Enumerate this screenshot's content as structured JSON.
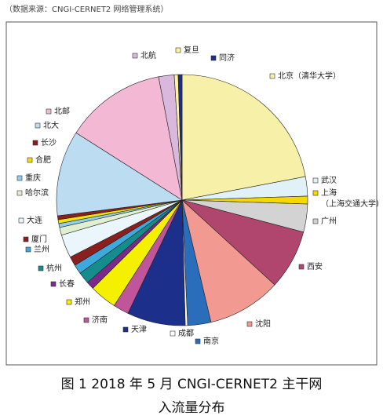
{
  "chart_data": {
    "type": "pie",
    "source": "（数据来源：CNGI-CERNET2 网络管理系统）",
    "title": "图 1  2018 年 5 月 CNGI-CERNET2 主干网\n入流量分布",
    "categories": [
      "北京（清华大学）",
      "武汉",
      "上海\n（上海交通大学）",
      "广州",
      "西安",
      "沈阳",
      "南京",
      "成都",
      "天津",
      "济南",
      "郑州",
      "长春",
      "杭州",
      "兰州",
      "厦门",
      "大连",
      "哈尔滨",
      "重庆",
      "合肥",
      "长沙",
      "北大",
      "北邮",
      "北航",
      "复旦",
      "同济"
    ],
    "values": [
      22,
      2.5,
      1,
      3.6,
      7.7,
      9.5,
      3,
      0.3,
      7.5,
      2,
      3.5,
      1,
      1.5,
      1.2,
      1.2,
      3,
      1,
      0.5,
      0.5,
      0.5,
      11,
      13,
      2,
      0.5,
      0.5
    ],
    "colors": [
      "#f7f0a8",
      "#e0f2f8",
      "#f5d800",
      "#d3d3d3",
      "#b0466e",
      "#f29a92",
      "#2a6ebb",
      "#ffffff",
      "#1c2f8a",
      "#c0559a",
      "#f5ef00",
      "#7a2a8a",
      "#168d8d",
      "#3fa9dd",
      "#8b1e1e",
      "#eaf6fb",
      "#e2efcf",
      "#8fd0e8",
      "#f2e200",
      "#8b1e1e",
      "#bcdcf2",
      "#f3b8d3",
      "#d8b8dc",
      "#fff2a0",
      "#1c2f8a"
    ]
  }
}
